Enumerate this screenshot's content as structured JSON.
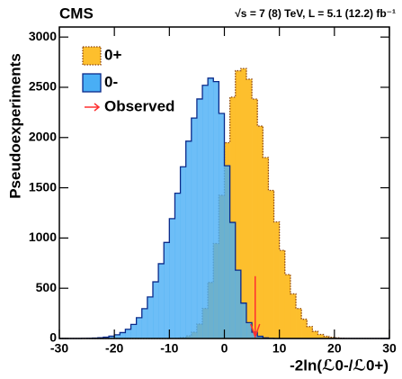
{
  "chart_data": {
    "type": "histogram",
    "title": "CMS",
    "subtitle": "√s = 7 (8) TeV, L = 5.1 (12.2) fb⁻¹",
    "xlabel": "-2ln(ℒ0-/ℒ0+)",
    "ylabel": "Pseudoexperiments",
    "bins": [
      -30,
      -29,
      -28,
      -27,
      -26,
      -25,
      -24,
      -23,
      -22,
      -21,
      -20,
      -19,
      -18,
      -17,
      -16,
      -15,
      -14,
      -13,
      -12,
      -11,
      -10,
      -9,
      -8,
      -7,
      -6,
      -5,
      -4,
      -3,
      -2,
      -1,
      0,
      1,
      2,
      3,
      4,
      5,
      6,
      7,
      8,
      9,
      10,
      11,
      12,
      13,
      14,
      15,
      16,
      17,
      18,
      19,
      20,
      21,
      22,
      23,
      24,
      25,
      26,
      27,
      28,
      29,
      30
    ],
    "series": [
      {
        "name": "0+",
        "color": "#fdbf2d",
        "edge": "#8b4513",
        "values": [
          0,
          0,
          0,
          0,
          0,
          0,
          0,
          0,
          0,
          0,
          0,
          0,
          0,
          0,
          0,
          0,
          0,
          0,
          0,
          0,
          1,
          3,
          9,
          25,
          63,
          144,
          299,
          558,
          945,
          1425,
          1949,
          2402,
          2665,
          2687,
          2581,
          2383,
          2114,
          1801,
          1474,
          1160,
          877,
          636,
          444,
          298,
          192,
          119,
          71,
          40,
          22,
          12,
          6,
          3,
          1,
          0,
          0,
          0,
          0,
          0,
          0,
          0
        ]
      },
      {
        "name": "0-",
        "color": "#49aef5",
        "edge": "#0a2a8a",
        "values": [
          0,
          0,
          0,
          0,
          1,
          2,
          4,
          8,
          13,
          23,
          37,
          59,
          92,
          140,
          207,
          297,
          413,
          564,
          744,
          956,
          1193,
          1446,
          1709,
          1964,
          2194,
          2384,
          2520,
          2591,
          2557,
          2240,
          1719,
          1155,
          680,
          352,
          158,
          63,
          22,
          7,
          2,
          0,
          0,
          0,
          0,
          0,
          0,
          0,
          0,
          0,
          0,
          0,
          0,
          0,
          0,
          0,
          0,
          0,
          0,
          0,
          0,
          0
        ]
      }
    ],
    "observed": {
      "name": "Observed",
      "color": "#ff3030",
      "value": 5.6
    },
    "xlim": [
      -30,
      30
    ],
    "xticks": [
      -30,
      -20,
      -10,
      0,
      10,
      20,
      30
    ],
    "ylim": [
      0,
      3100
    ],
    "yticks": [
      0,
      500,
      1000,
      1500,
      2000,
      2500,
      3000
    ]
  }
}
